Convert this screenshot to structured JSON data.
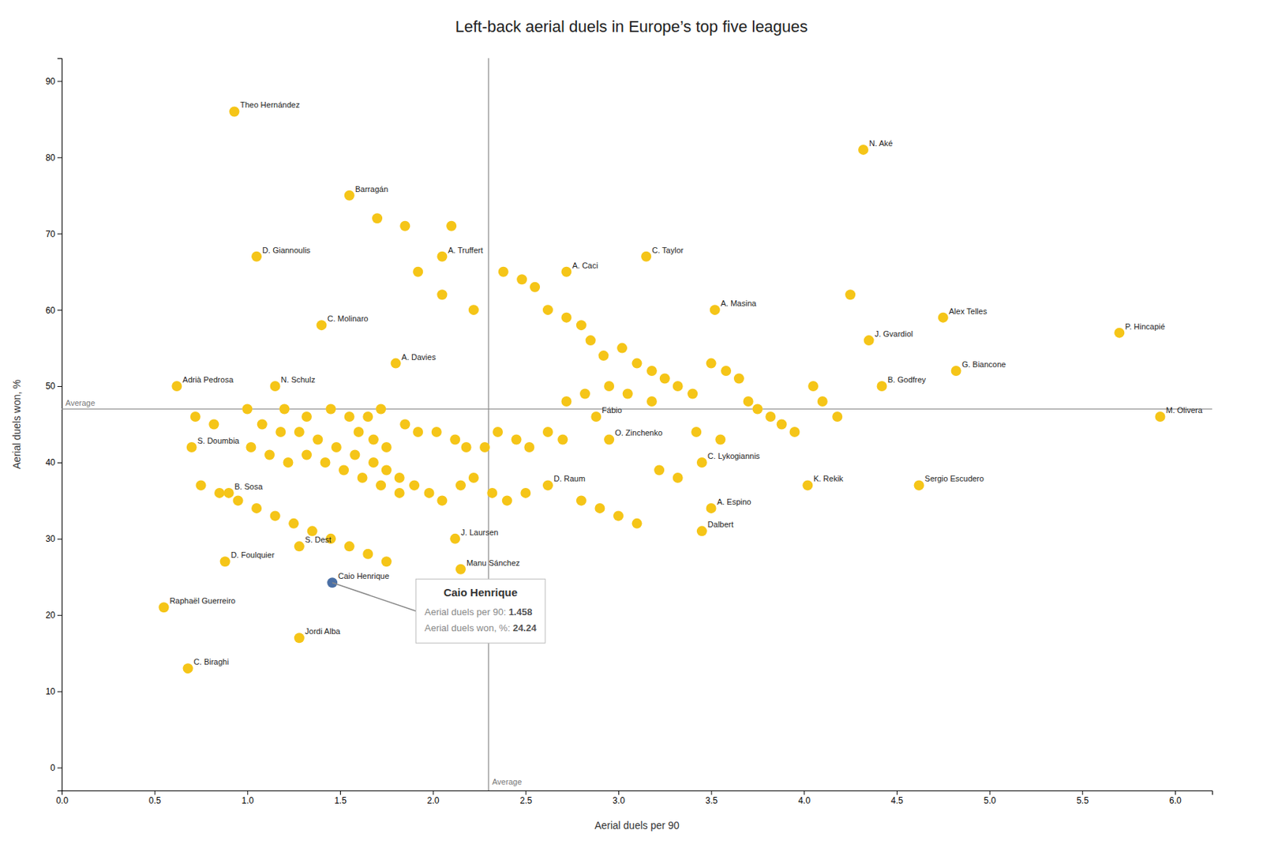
{
  "chart_data": {
    "type": "scatter",
    "title": "Left-back aerial duels in Europe’s top five leagues",
    "x_label": "Aerial duels per 90",
    "y_label": "Aerial duels won, %",
    "xlim": [
      0.0,
      6.2
    ],
    "ylim": [
      -3,
      93
    ],
    "xticks": [
      {
        "value": 0,
        "label": "0.0"
      },
      0.5,
      {
        "value": 1,
        "label": "1.0"
      },
      1.5,
      {
        "value": 2,
        "label": "2.0"
      },
      2.5,
      {
        "value": 3,
        "label": "3.0"
      },
      3.5,
      {
        "value": 4,
        "label": "4.0"
      },
      4.5,
      {
        "value": 5,
        "label": "5.0"
      },
      5.5,
      {
        "value": 6,
        "label": "6.0"
      }
    ],
    "yticks": [
      0,
      10,
      20,
      30,
      40,
      50,
      60,
      70,
      80,
      90
    ],
    "grid": false,
    "series": [
      {
        "color": "#f5c518",
        "x": [
          1.7,
          1.85,
          2.1,
          1.92,
          2.05,
          2.22,
          2.38,
          2.48,
          2.55,
          2.62,
          2.72,
          2.8,
          2.85,
          2.92,
          3.02,
          3.1,
          3.18,
          3.25,
          3.32,
          3.4,
          3.5,
          3.58,
          3.65,
          3.7,
          3.75,
          3.82,
          3.88,
          3.95,
          4.05,
          4.1,
          4.18,
          4.25,
          1.2,
          1.32,
          1.45,
          1.55,
          1.65,
          1.72,
          1.6,
          1.68,
          1.75,
          1.85,
          1.92,
          2.02,
          2.12,
          2.18,
          2.28,
          2.35,
          2.45,
          2.52,
          2.62,
          2.7,
          1.08,
          1.18,
          1.28,
          1.38,
          1.48,
          1.58,
          1.68,
          1.75,
          1.82,
          1.9,
          1.98,
          2.05,
          2.15,
          2.22,
          2.32,
          2.4,
          2.5,
          1.02,
          1.12,
          1.22,
          1.32,
          1.42,
          1.52,
          1.62,
          1.72,
          1.82,
          0.72,
          0.82,
          1.0,
          0.75,
          0.85,
          0.95,
          1.05,
          1.15,
          1.25,
          1.35,
          1.45,
          1.55,
          1.65,
          1.75,
          2.8,
          2.9,
          3.0,
          3.1,
          3.22,
          3.32,
          3.42,
          3.55,
          2.72,
          2.82,
          2.95,
          3.05,
          3.18
        ],
        "values": [
          72,
          71,
          71,
          65,
          62,
          60,
          65,
          64,
          63,
          60,
          59,
          58,
          56,
          54,
          55,
          53,
          52,
          51,
          50,
          49,
          53,
          52,
          51,
          48,
          47,
          46,
          45,
          44,
          50,
          48,
          46,
          62,
          47,
          46,
          47,
          46,
          46,
          47,
          44,
          43,
          42,
          45,
          44,
          44,
          43,
          42,
          42,
          44,
          43,
          42,
          44,
          43,
          45,
          44,
          44,
          43,
          42,
          41,
          40,
          39,
          38,
          37,
          36,
          35,
          37,
          38,
          36,
          35,
          36,
          42,
          41,
          40,
          41,
          40,
          39,
          38,
          37,
          36,
          46,
          45,
          47,
          37,
          36,
          35,
          34,
          33,
          32,
          31,
          30,
          29,
          28,
          27,
          35,
          34,
          33,
          32,
          39,
          38,
          44,
          43,
          48,
          49,
          50,
          49,
          48
        ]
      },
      {
        "color": "#f5c518",
        "x": [
          0.93,
          1.55,
          1.05,
          2.05,
          1.4,
          1.8,
          0.62,
          1.15,
          0.7,
          0.9,
          0.88,
          1.28,
          0.55,
          1.28,
          0.68,
          2.15,
          2.12,
          2.62,
          2.88,
          2.95,
          2.72,
          3.15,
          3.52,
          3.45,
          3.5,
          3.45,
          4.02,
          4.35,
          4.42,
          4.32,
          4.75,
          4.82,
          4.62,
          5.7,
          5.92
        ],
        "values": [
          86,
          75,
          67,
          67,
          58,
          53,
          50,
          50,
          42,
          36,
          27,
          29,
          21,
          17,
          13,
          26,
          30,
          37,
          46,
          43,
          65,
          67,
          60,
          40,
          34,
          31,
          37,
          56,
          50,
          81,
          59,
          52,
          37,
          57,
          46
        ],
        "labels": [
          "Theo Hernández",
          "Barragán",
          "D. Giannoulis",
          "A. Truffert",
          "C. Molinaro",
          "A. Davies",
          "Adrià Pedrosa",
          "N. Schulz",
          "S. Doumbia",
          "B. Sosa",
          "D. Foulquier",
          "S. Dest",
          "Raphaël Guerreiro",
          "Jordi Alba",
          "C. Biraghi",
          "Manu Sánchez",
          "J. Laursen",
          "D. Raum",
          "Fábio",
          "O. Zinchenko",
          "A. Caci",
          "C. Taylor",
          "A. Masina",
          "C. Lykogiannis",
          "A. Espino",
          "Dalbert",
          "K. Rekik",
          "J. Gvardiol",
          "B. Godfrey",
          "N. Aké",
          "Alex Telles",
          "G. Biancone",
          "Sergio Escudero",
          "P. Hincapié",
          "M. Olivera"
        ]
      },
      {
        "color": "#4a6fa5",
        "x": [
          1.458
        ],
        "values": [
          24.24
        ],
        "labels": [
          "Caio Henrique"
        ]
      }
    ],
    "reference_lines": [
      {
        "axis": "x",
        "value": 2.3,
        "label": "Average"
      },
      {
        "axis": "y",
        "value": 47.0,
        "label": "Average"
      }
    ],
    "annotation_box": {
      "title": "Caio Henrique",
      "lines": [
        {
          "label": "Aerial duels per 90: ",
          "value": 1.458
        },
        {
          "label": "Aerial duels won, %: ",
          "value": 24.24
        }
      ]
    }
  }
}
